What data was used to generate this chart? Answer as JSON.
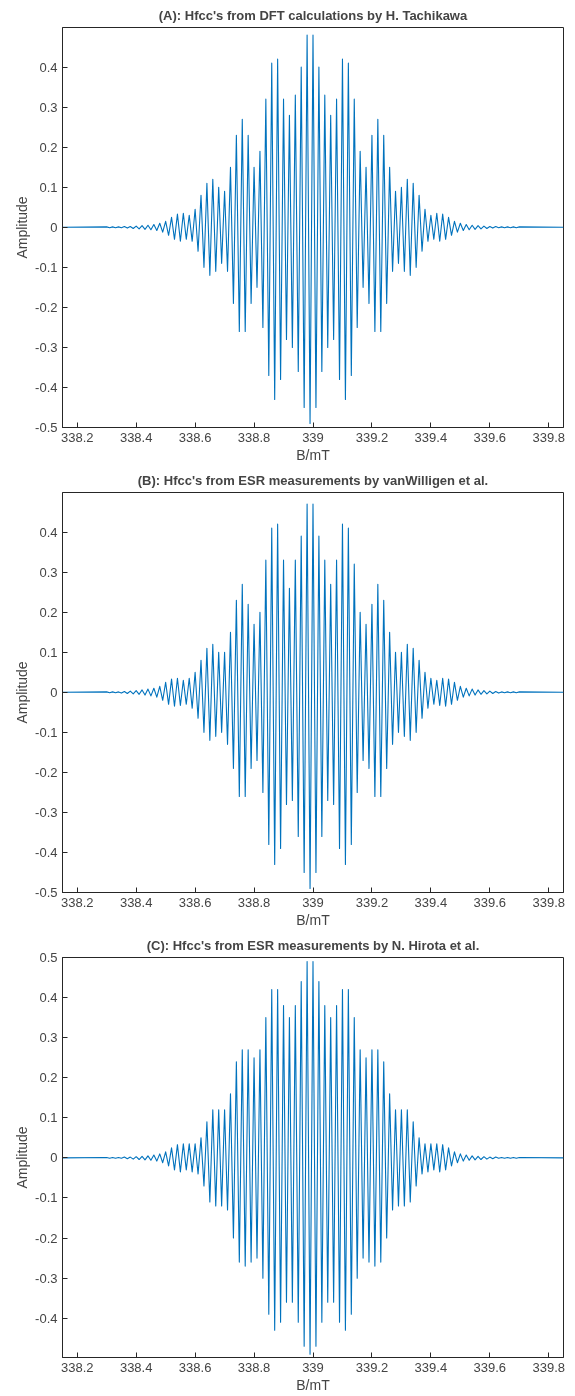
{
  "chart_data": [
    {
      "type": "line",
      "title": "(A): Hfcc's from DFT calculations by H. Tachikawa",
      "xlabel": "B/mT",
      "ylabel": "Amplitude",
      "xlim": [
        338.15,
        339.85
      ],
      "ylim": [
        -0.5,
        0.499
      ],
      "xticks": [
        338.2,
        338.4,
        338.6,
        338.8,
        339,
        339.2,
        339.4,
        339.6,
        339.8
      ],
      "yticks": [
        -0.5,
        -0.4,
        -0.3,
        -0.2,
        -0.1,
        0,
        0.1,
        0.2,
        0.3,
        0.4
      ],
      "x": [
        338.15,
        338.3,
        338.31,
        338.32,
        338.33,
        338.34,
        338.35,
        338.36,
        338.37,
        338.38,
        338.39,
        338.4,
        338.41,
        338.42,
        338.43,
        338.44,
        338.45,
        338.46,
        338.47,
        338.48,
        338.49,
        338.5,
        338.51,
        338.52,
        338.53,
        338.54,
        338.55,
        338.56,
        338.57,
        338.58,
        338.59,
        338.6,
        338.61,
        338.62,
        338.63,
        338.64,
        338.65,
        338.66,
        338.67,
        338.68,
        338.69,
        338.7,
        338.71,
        338.72,
        338.73,
        338.74,
        338.75,
        338.76,
        338.77,
        338.78,
        338.79,
        338.8,
        338.81,
        338.82,
        338.83,
        338.84,
        338.85,
        338.86,
        338.87,
        338.88,
        338.89,
        338.9,
        338.91,
        338.92,
        338.93,
        338.94,
        338.95,
        338.96,
        338.97,
        338.98,
        338.99,
        339,
        339.01,
        339.02,
        339.03,
        339.04,
        339.05,
        339.06,
        339.07,
        339.08,
        339.09,
        339.1,
        339.11,
        339.12,
        339.13,
        339.14,
        339.15,
        339.16,
        339.17,
        339.18,
        339.19,
        339.2,
        339.21,
        339.22,
        339.23,
        339.24,
        339.25,
        339.26,
        339.27,
        339.28,
        339.29,
        339.3,
        339.31,
        339.32,
        339.33,
        339.34,
        339.35,
        339.36,
        339.37,
        339.38,
        339.39,
        339.4,
        339.41,
        339.42,
        339.43,
        339.44,
        339.45,
        339.46,
        339.47,
        339.48,
        339.49,
        339.5,
        339.51,
        339.52,
        339.53,
        339.54,
        339.55,
        339.56,
        339.57,
        339.58,
        339.59,
        339.6,
        339.61,
        339.62,
        339.63,
        339.64,
        339.65,
        339.66,
        339.67,
        339.68,
        339.69,
        339.7,
        339.85
      ],
      "series": [
        {
          "color": "#0072bd",
          "values": [
            0,
            0.001,
            -0.001,
            0.001,
            -0.001,
            0.001,
            -0.001,
            0.002,
            -0.002,
            0.002,
            -0.003,
            0.003,
            -0.004,
            0.004,
            -0.005,
            0.005,
            -0.006,
            0.007,
            -0.008,
            0.01,
            -0.012,
            0.015,
            -0.02,
            0.025,
            -0.03,
            0.033,
            -0.035,
            0.035,
            -0.03,
            0.03,
            -0.035,
            0.045,
            -0.06,
            0.08,
            -0.1,
            0.11,
            -0.12,
            0.12,
            -0.11,
            0.1,
            -0.09,
            0.09,
            -0.11,
            0.15,
            -0.19,
            0.23,
            -0.26,
            0.27,
            -0.26,
            0.23,
            -0.19,
            0.15,
            -0.15,
            0.19,
            -0.25,
            0.32,
            -0.37,
            0.41,
            -0.43,
            0.42,
            -0.38,
            0.32,
            -0.28,
            0.28,
            -0.3,
            0.33,
            -0.36,
            0.4,
            -0.45,
            0.48,
            -0.49,
            0.48,
            -0.45,
            0.4,
            -0.36,
            0.33,
            -0.3,
            0.28,
            -0.28,
            0.32,
            -0.38,
            0.42,
            -0.43,
            0.41,
            -0.37,
            0.32,
            -0.25,
            0.19,
            -0.15,
            0.15,
            -0.19,
            0.23,
            -0.26,
            0.27,
            -0.26,
            0.23,
            -0.19,
            0.15,
            -0.11,
            0.09,
            -0.09,
            0.1,
            -0.11,
            0.12,
            -0.12,
            0.11,
            -0.1,
            0.08,
            -0.06,
            0.045,
            -0.035,
            0.03,
            -0.03,
            0.035,
            -0.035,
            0.033,
            -0.03,
            0.025,
            -0.02,
            0.015,
            -0.012,
            0.01,
            -0.008,
            0.007,
            -0.006,
            0.005,
            -0.005,
            0.004,
            -0.004,
            0.003,
            -0.003,
            0.002,
            -0.002,
            0.002,
            -0.001,
            0.001,
            -0.001,
            0.001,
            -0.001,
            0.001,
            -0.001,
            0.001,
            0
          ]
        }
      ]
    },
    {
      "type": "line",
      "title": "(B): Hfcc's from ESR measurements by vanWilligen et al.",
      "xlabel": "B/mT",
      "ylabel": "Amplitude",
      "xlim": [
        338.15,
        339.85
      ],
      "ylim": [
        -0.5,
        0.499
      ],
      "xticks": [
        338.2,
        338.4,
        338.6,
        338.8,
        339,
        339.2,
        339.4,
        339.6,
        339.8
      ],
      "yticks": [
        -0.5,
        -0.4,
        -0.3,
        -0.2,
        -0.1,
        0,
        0.1,
        0.2,
        0.3,
        0.4
      ],
      "x": [
        338.15,
        338.3,
        338.31,
        338.32,
        338.33,
        338.34,
        338.35,
        338.36,
        338.37,
        338.38,
        338.39,
        338.4,
        338.41,
        338.42,
        338.43,
        338.44,
        338.45,
        338.46,
        338.47,
        338.48,
        338.49,
        338.5,
        338.51,
        338.52,
        338.53,
        338.54,
        338.55,
        338.56,
        338.57,
        338.58,
        338.59,
        338.6,
        338.61,
        338.62,
        338.63,
        338.64,
        338.65,
        338.66,
        338.67,
        338.68,
        338.69,
        338.7,
        338.71,
        338.72,
        338.73,
        338.74,
        338.75,
        338.76,
        338.77,
        338.78,
        338.79,
        338.8,
        338.81,
        338.82,
        338.83,
        338.84,
        338.85,
        338.86,
        338.87,
        338.88,
        338.89,
        338.9,
        338.91,
        338.92,
        338.93,
        338.94,
        338.95,
        338.96,
        338.97,
        338.98,
        338.99,
        339,
        339.01,
        339.02,
        339.03,
        339.04,
        339.05,
        339.06,
        339.07,
        339.08,
        339.09,
        339.1,
        339.11,
        339.12,
        339.13,
        339.14,
        339.15,
        339.16,
        339.17,
        339.18,
        339.19,
        339.2,
        339.21,
        339.22,
        339.23,
        339.24,
        339.25,
        339.26,
        339.27,
        339.28,
        339.29,
        339.3,
        339.31,
        339.32,
        339.33,
        339.34,
        339.35,
        339.36,
        339.37,
        339.38,
        339.39,
        339.4,
        339.41,
        339.42,
        339.43,
        339.44,
        339.45,
        339.46,
        339.47,
        339.48,
        339.49,
        339.5,
        339.51,
        339.52,
        339.53,
        339.54,
        339.55,
        339.56,
        339.57,
        339.58,
        339.59,
        339.6,
        339.61,
        339.62,
        339.63,
        339.64,
        339.65,
        339.66,
        339.67,
        339.68,
        339.69,
        339.7,
        339.85
      ],
      "series": [
        {
          "color": "#0072bd",
          "values": [
            0,
            0.001,
            -0.001,
            0.001,
            -0.001,
            0.001,
            -0.002,
            0.002,
            -0.003,
            0.003,
            -0.004,
            0.004,
            -0.005,
            0.006,
            -0.007,
            0.008,
            -0.009,
            0.01,
            -0.012,
            0.015,
            -0.02,
            0.025,
            -0.03,
            0.033,
            -0.035,
            0.035,
            -0.033,
            0.03,
            -0.03,
            0.035,
            -0.04,
            0.05,
            -0.065,
            0.08,
            -0.1,
            0.11,
            -0.12,
            0.12,
            -0.11,
            0.1,
            -0.1,
            0.1,
            -0.13,
            0.15,
            -0.19,
            0.23,
            -0.26,
            0.27,
            -0.26,
            0.22,
            -0.19,
            0.17,
            -0.17,
            0.2,
            -0.25,
            0.33,
            -0.38,
            0.41,
            -0.43,
            0.42,
            -0.39,
            0.33,
            -0.28,
            0.26,
            -0.27,
            0.33,
            -0.36,
            0.39,
            -0.45,
            0.47,
            -0.49,
            0.47,
            -0.45,
            0.39,
            -0.36,
            0.33,
            -0.27,
            0.27,
            -0.28,
            0.33,
            -0.39,
            0.42,
            -0.43,
            0.41,
            -0.38,
            0.32,
            -0.25,
            0.2,
            -0.17,
            0.17,
            -0.19,
            0.22,
            -0.26,
            0.27,
            -0.26,
            0.23,
            -0.19,
            0.15,
            -0.13,
            0.1,
            -0.1,
            0.1,
            -0.11,
            0.12,
            -0.12,
            0.11,
            -0.1,
            0.08,
            -0.065,
            0.05,
            -0.04,
            0.035,
            -0.03,
            0.03,
            -0.033,
            0.035,
            -0.035,
            0.033,
            -0.03,
            0.025,
            -0.02,
            0.015,
            -0.012,
            0.01,
            -0.009,
            0.008,
            -0.007,
            0.006,
            -0.005,
            0.004,
            -0.004,
            0.003,
            -0.003,
            0.002,
            -0.002,
            0.001,
            -0.001,
            0.001,
            -0.001,
            0.001,
            -0.001,
            0.001,
            0
          ]
        }
      ]
    },
    {
      "type": "line",
      "title": "(C): Hfcc's from ESR measurements by N. Hirota et al.",
      "xlabel": "B/mT",
      "ylabel": "Amplitude",
      "xlim": [
        338.15,
        339.85
      ],
      "ylim": [
        -0.498,
        0.5
      ],
      "xticks": [
        338.2,
        338.4,
        338.6,
        338.8,
        339,
        339.2,
        339.4,
        339.6,
        339.8
      ],
      "yticks": [
        -0.4,
        -0.3,
        -0.2,
        -0.1,
        0,
        0.1,
        0.2,
        0.3,
        0.4,
        0.5
      ],
      "x": [
        338.15,
        338.3,
        338.31,
        338.32,
        338.33,
        338.34,
        338.35,
        338.36,
        338.37,
        338.38,
        338.39,
        338.4,
        338.41,
        338.42,
        338.43,
        338.44,
        338.45,
        338.46,
        338.47,
        338.48,
        338.49,
        338.5,
        338.51,
        338.52,
        338.53,
        338.54,
        338.55,
        338.56,
        338.57,
        338.58,
        338.59,
        338.6,
        338.61,
        338.62,
        338.63,
        338.64,
        338.65,
        338.66,
        338.67,
        338.68,
        338.69,
        338.7,
        338.71,
        338.72,
        338.73,
        338.74,
        338.75,
        338.76,
        338.77,
        338.78,
        338.79,
        338.8,
        338.81,
        338.82,
        338.83,
        338.84,
        338.85,
        338.86,
        338.87,
        338.88,
        338.89,
        338.9,
        338.91,
        338.92,
        338.93,
        338.94,
        338.95,
        338.96,
        338.97,
        338.98,
        338.99,
        339,
        339.01,
        339.02,
        339.03,
        339.04,
        339.05,
        339.06,
        339.07,
        339.08,
        339.09,
        339.1,
        339.11,
        339.12,
        339.13,
        339.14,
        339.15,
        339.16,
        339.17,
        339.18,
        339.19,
        339.2,
        339.21,
        339.22,
        339.23,
        339.24,
        339.25,
        339.26,
        339.27,
        339.28,
        339.29,
        339.3,
        339.31,
        339.32,
        339.33,
        339.34,
        339.35,
        339.36,
        339.37,
        339.38,
        339.39,
        339.4,
        339.41,
        339.42,
        339.43,
        339.44,
        339.45,
        339.46,
        339.47,
        339.48,
        339.49,
        339.5,
        339.51,
        339.52,
        339.53,
        339.54,
        339.55,
        339.56,
        339.57,
        339.58,
        339.59,
        339.6,
        339.61,
        339.62,
        339.63,
        339.64,
        339.65,
        339.66,
        339.67,
        339.68,
        339.69,
        339.7,
        339.85
      ],
      "series": [
        {
          "color": "#0072bd",
          "values": [
            0,
            0.001,
            -0.001,
            0.001,
            -0.001,
            0.001,
            -0.001,
            0.002,
            -0.002,
            0.002,
            -0.003,
            0.003,
            -0.004,
            0.004,
            -0.005,
            0.005,
            -0.006,
            0.007,
            -0.008,
            0.01,
            -0.012,
            0.015,
            -0.02,
            0.025,
            -0.03,
            0.033,
            -0.035,
            0.035,
            -0.03,
            0.035,
            -0.035,
            0.035,
            -0.04,
            0.05,
            -0.07,
            0.09,
            -0.11,
            0.12,
            -0.12,
            0.12,
            -0.12,
            0.12,
            -0.13,
            0.16,
            -0.2,
            0.24,
            -0.26,
            0.27,
            -0.27,
            0.27,
            -0.26,
            0.25,
            -0.25,
            0.27,
            -0.3,
            0.35,
            -0.39,
            0.42,
            -0.43,
            0.42,
            -0.41,
            0.38,
            -0.36,
            0.35,
            -0.36,
            0.38,
            -0.41,
            0.44,
            -0.47,
            0.49,
            -0.49,
            0.49,
            -0.47,
            0.44,
            -0.41,
            0.38,
            -0.36,
            0.35,
            -0.36,
            0.38,
            -0.41,
            0.42,
            -0.43,
            0.42,
            -0.39,
            0.35,
            -0.3,
            0.27,
            -0.25,
            0.25,
            -0.26,
            0.27,
            -0.27,
            0.27,
            -0.26,
            0.24,
            -0.2,
            0.16,
            -0.13,
            0.12,
            -0.12,
            0.12,
            -0.12,
            0.12,
            -0.11,
            0.09,
            -0.07,
            0.05,
            -0.04,
            0.035,
            -0.035,
            0.035,
            -0.03,
            0.035,
            -0.035,
            0.033,
            -0.03,
            0.025,
            -0.02,
            0.015,
            -0.012,
            0.01,
            -0.008,
            0.007,
            -0.006,
            0.005,
            -0.005,
            0.004,
            -0.004,
            0.003,
            -0.003,
            0.002,
            -0.002,
            0.002,
            -0.001,
            0.001,
            -0.001,
            0.001,
            -0.001,
            0.001,
            -0.001,
            0.001,
            0
          ]
        }
      ]
    }
  ]
}
